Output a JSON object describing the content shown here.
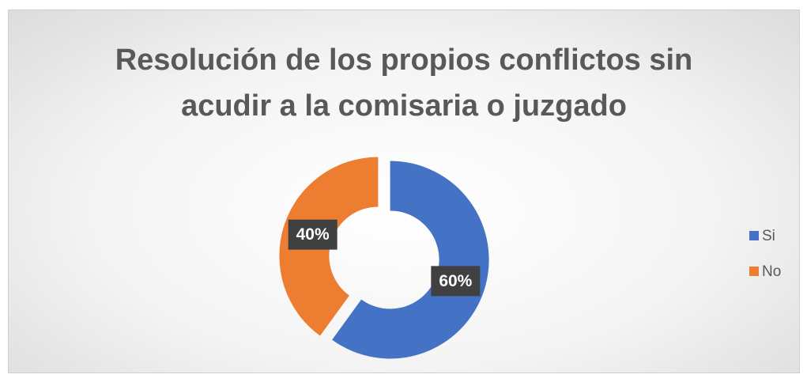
{
  "chart_data": {
    "type": "doughnut",
    "title": "Resolución  de los propios conflictos sin\nacudir a la  comisaria o juzgado",
    "categories": [
      "Si",
      "No"
    ],
    "values": [
      60,
      40
    ],
    "value_labels": [
      "60%",
      "40%"
    ],
    "colors": [
      "#4472c4",
      "#ed7d31"
    ],
    "legend": "right"
  }
}
